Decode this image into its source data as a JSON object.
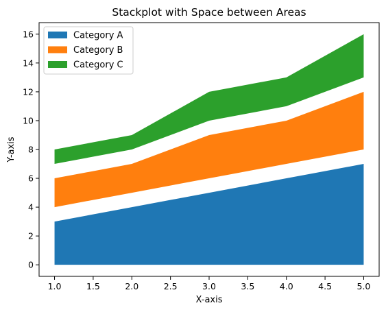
{
  "chart_data": {
    "type": "area",
    "title": "Stackplot with Space between Areas",
    "xlabel": "X-axis",
    "ylabel": "Y-axis",
    "x": [
      1,
      2,
      3,
      4,
      5
    ],
    "xlim": [
      0.8,
      5.2
    ],
    "ylim": [
      -0.8,
      16.8
    ],
    "xticks": [
      1.0,
      1.5,
      2.0,
      2.5,
      3.0,
      3.5,
      4.0,
      4.5,
      5.0
    ],
    "xtick_labels": [
      "1.0",
      "1.5",
      "2.0",
      "2.5",
      "3.0",
      "3.5",
      "4.0",
      "4.5",
      "5.0"
    ],
    "yticks": [
      0,
      2,
      4,
      6,
      8,
      10,
      12,
      14,
      16
    ],
    "ytick_labels": [
      "0",
      "2",
      "4",
      "6",
      "8",
      "10",
      "12",
      "14",
      "16"
    ],
    "grid": false,
    "legend_position": "top-left",
    "series": [
      {
        "name": "Category A",
        "color": "#1f77b4",
        "lower": [
          0,
          0,
          0,
          0,
          0
        ],
        "upper": [
          3,
          4,
          5,
          6,
          7
        ]
      },
      {
        "name": "Category B",
        "color": "#ff7f0e",
        "lower": [
          4,
          5,
          6,
          7,
          8
        ],
        "upper": [
          6,
          7,
          9,
          10,
          12
        ]
      },
      {
        "name": "Category C",
        "color": "#2ca02c",
        "lower": [
          7,
          8,
          10,
          11,
          13
        ],
        "upper": [
          8,
          9,
          12,
          13,
          16
        ]
      }
    ]
  }
}
